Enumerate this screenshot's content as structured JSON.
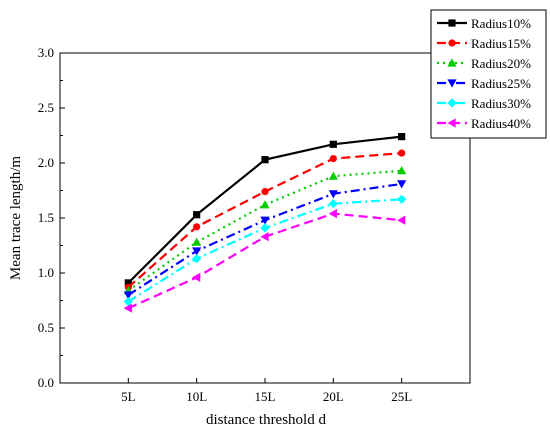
{
  "chart_data": {
    "type": "line",
    "xlabel": "distance threshold d",
    "ylabel": "Mean trace length/m",
    "categories": [
      "5L",
      "10L",
      "15L",
      "20L",
      "25L"
    ],
    "ylim": [
      0.0,
      3.0
    ],
    "yticks": [
      "0.0",
      "0.5",
      "1.0",
      "1.5",
      "2.0",
      "2.5",
      "3.0"
    ],
    "legend_position": "top-right",
    "series": [
      {
        "name": "Radius10%",
        "values": [
          0.91,
          1.53,
          2.03,
          2.17,
          2.24
        ],
        "color": "#000000",
        "marker": "square",
        "dash": "solid"
      },
      {
        "name": "Radius15%",
        "values": [
          0.87,
          1.42,
          1.74,
          2.04,
          2.09
        ],
        "color": "#ff0000",
        "marker": "circle",
        "dash": "dash"
      },
      {
        "name": "Radius20%",
        "values": [
          0.84,
          1.28,
          1.62,
          1.88,
          1.93
        ],
        "color": "#00cc00",
        "marker": "triangle-up",
        "dash": "dot"
      },
      {
        "name": "Radius25%",
        "values": [
          0.8,
          1.2,
          1.48,
          1.72,
          1.81
        ],
        "color": "#0000ff",
        "marker": "triangle-down",
        "dash": "dashdot"
      },
      {
        "name": "Radius30%",
        "values": [
          0.74,
          1.13,
          1.41,
          1.63,
          1.67
        ],
        "color": "#00ffff",
        "marker": "diamond",
        "dash": "dashdot"
      },
      {
        "name": "Radius40%",
        "values": [
          0.68,
          0.96,
          1.33,
          1.54,
          1.48
        ],
        "color": "#ff00ff",
        "marker": "triangle-left",
        "dash": "dash"
      }
    ]
  }
}
